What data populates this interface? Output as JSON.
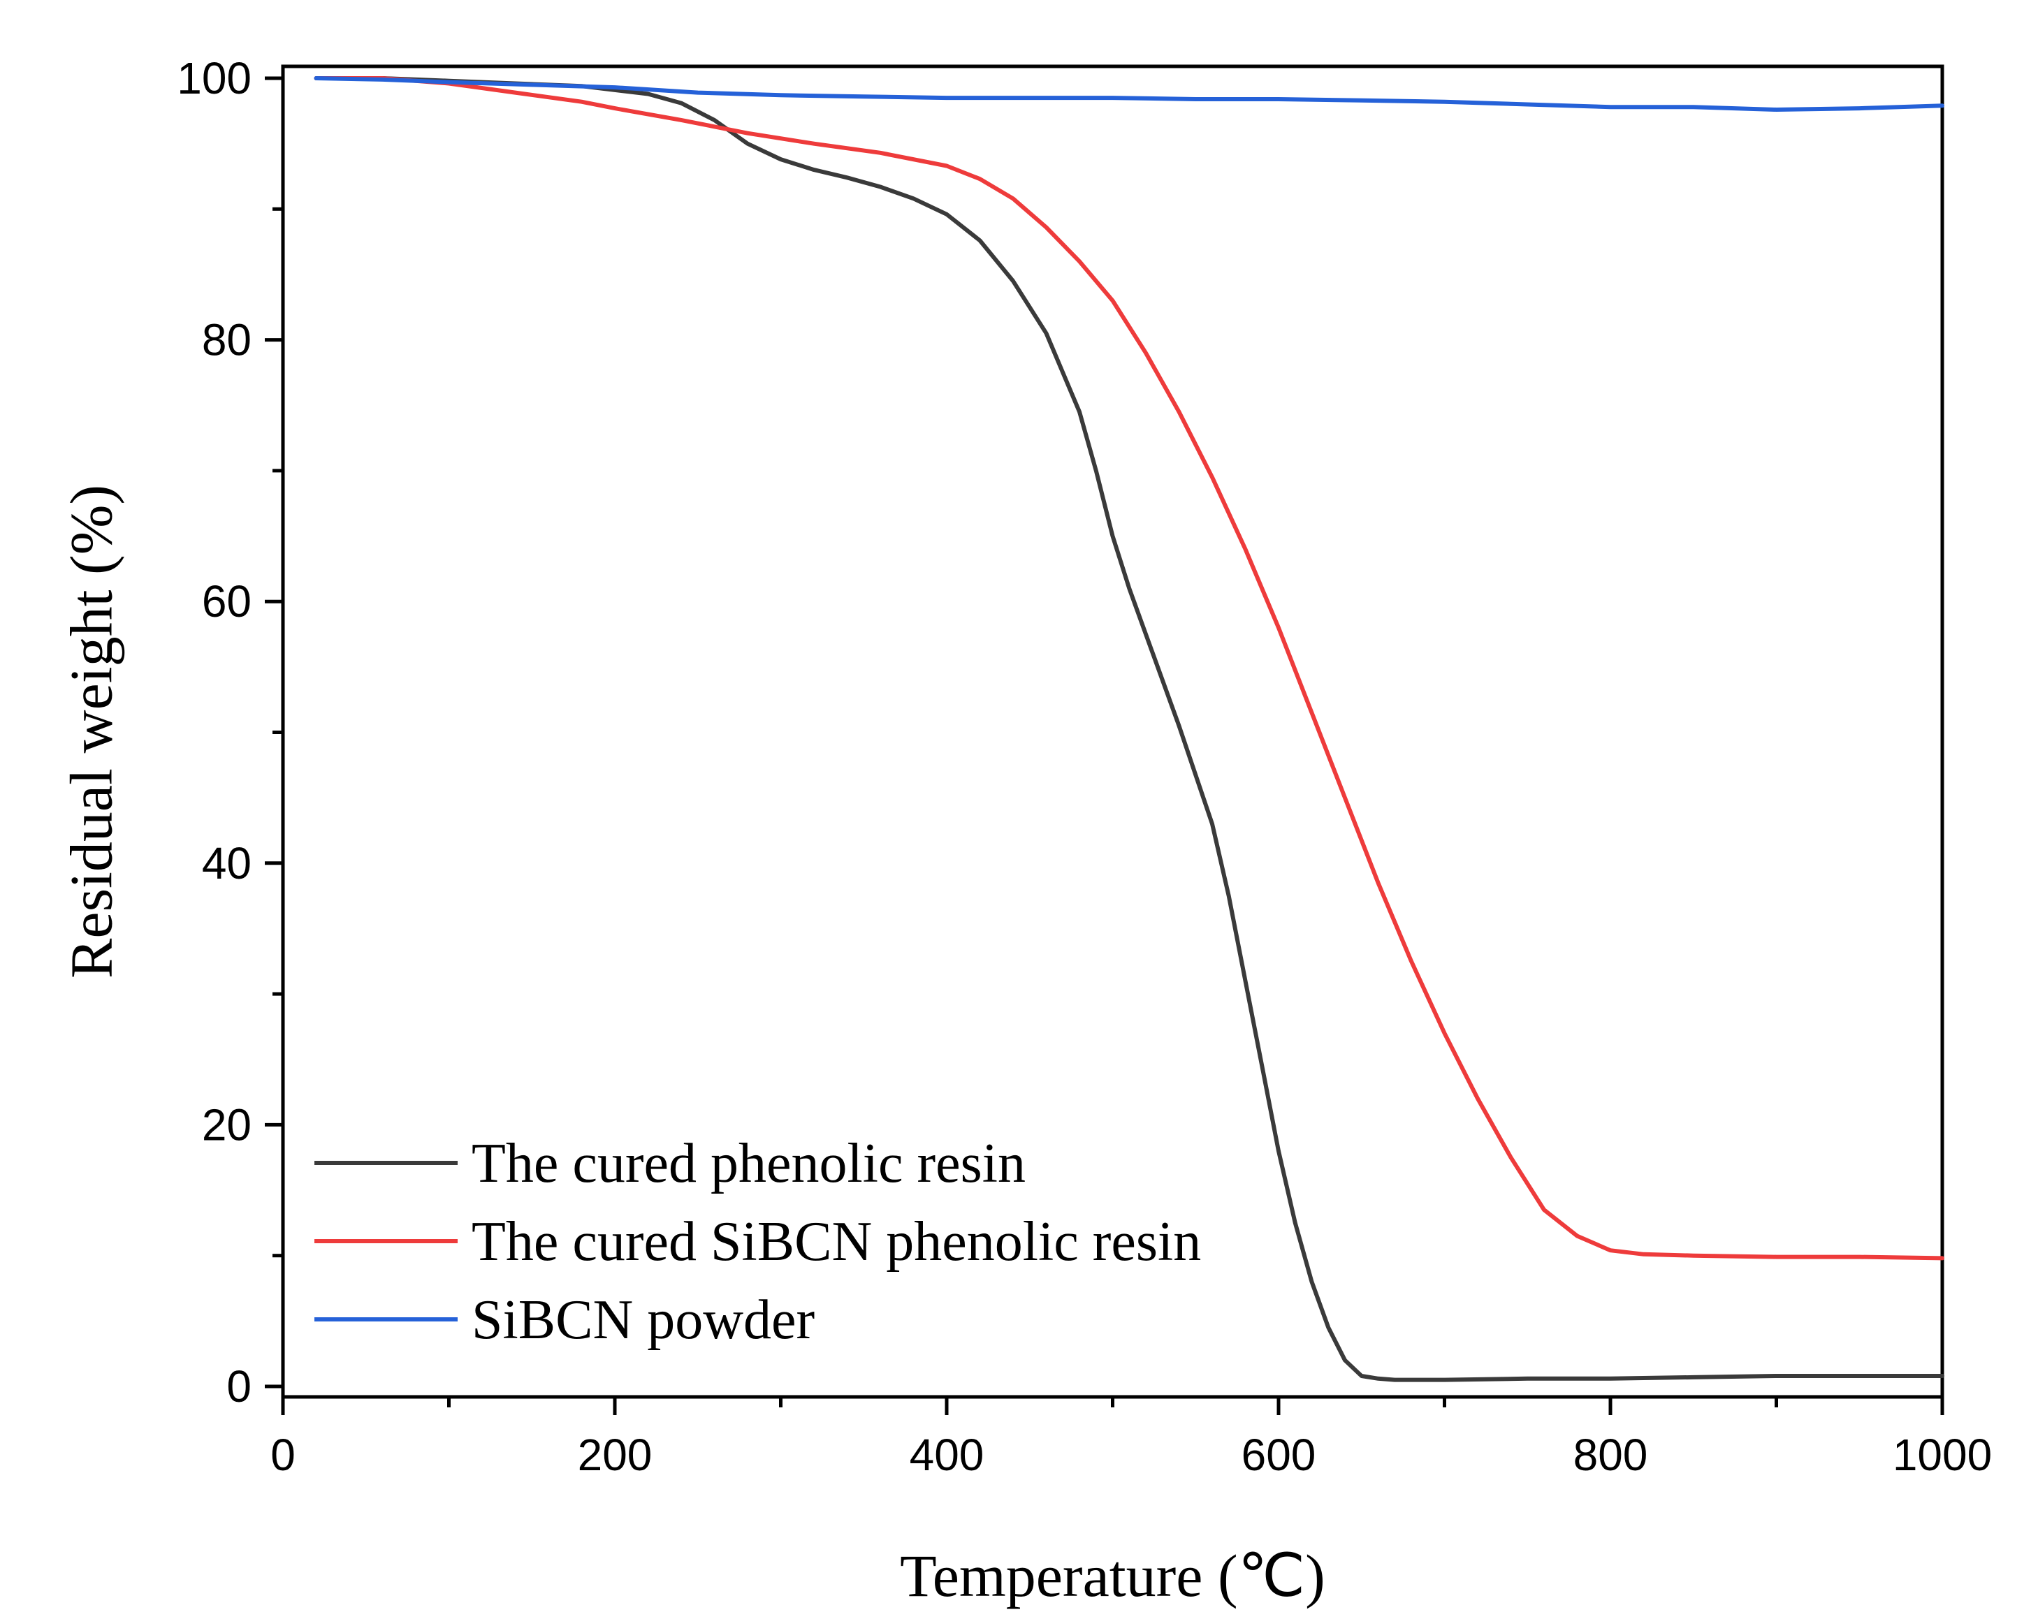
{
  "chart_data": {
    "type": "line",
    "title": "",
    "xlabel": "Temperature (℃)",
    "ylabel": "Residual weight (%)",
    "xlim": [
      0,
      1000
    ],
    "ylim": [
      0,
      100
    ],
    "xticks": [
      0,
      200,
      400,
      600,
      800,
      1000
    ],
    "yticks": [
      0,
      20,
      40,
      60,
      80,
      100
    ],
    "grid": false,
    "legend_position": "bottom-left",
    "series": [
      {
        "name": "The cured phenolic resin",
        "color": "#3a3a3a",
        "x": [
          20,
          60,
          100,
          140,
          180,
          200,
          220,
          240,
          260,
          280,
          300,
          320,
          340,
          360,
          380,
          400,
          420,
          440,
          460,
          480,
          490,
          500,
          510,
          520,
          540,
          560,
          570,
          580,
          590,
          600,
          610,
          620,
          630,
          640,
          650,
          660,
          670,
          700,
          750,
          800,
          850,
          900,
          950,
          1000
        ],
        "y": [
          100,
          100,
          99.8,
          99.6,
          99.4,
          99.1,
          98.8,
          98.1,
          96.8,
          95.0,
          93.8,
          93.0,
          92.4,
          91.7,
          90.8,
          89.6,
          87.6,
          84.5,
          80.5,
          74.5,
          70.0,
          65.0,
          61.0,
          57.5,
          50.5,
          43.0,
          37.5,
          31.0,
          24.5,
          18.0,
          12.5,
          8.0,
          4.5,
          2.0,
          0.8,
          0.6,
          0.5,
          0.5,
          0.6,
          0.6,
          0.7,
          0.8,
          0.8,
          0.8
        ]
      },
      {
        "name": "The cured SiBCN phenolic resin",
        "color": "#ee3b3b",
        "x": [
          20,
          60,
          100,
          140,
          180,
          200,
          240,
          280,
          320,
          360,
          400,
          420,
          440,
          460,
          480,
          500,
          520,
          540,
          560,
          580,
          600,
          620,
          640,
          660,
          680,
          700,
          720,
          740,
          760,
          780,
          800,
          820,
          850,
          900,
          950,
          1000
        ],
        "y": [
          100,
          100,
          99.6,
          98.9,
          98.2,
          97.7,
          96.8,
          95.8,
          95.0,
          94.3,
          93.3,
          92.3,
          90.8,
          88.6,
          86.0,
          83.0,
          79.0,
          74.5,
          69.5,
          64.0,
          58.0,
          51.5,
          45.0,
          38.5,
          32.5,
          27.0,
          22.0,
          17.5,
          13.5,
          11.5,
          10.4,
          10.1,
          10.0,
          9.9,
          9.9,
          9.8
        ]
      },
      {
        "name": "SiBCN powder",
        "color": "#2561d8",
        "x": [
          20,
          60,
          100,
          150,
          200,
          250,
          300,
          350,
          400,
          450,
          500,
          550,
          600,
          650,
          700,
          750,
          800,
          850,
          900,
          950,
          1000
        ],
        "y": [
          100,
          99.9,
          99.7,
          99.5,
          99.3,
          98.9,
          98.7,
          98.6,
          98.5,
          98.5,
          98.5,
          98.4,
          98.4,
          98.3,
          98.2,
          98.0,
          97.8,
          97.8,
          97.6,
          97.7,
          97.9
        ]
      }
    ]
  }
}
